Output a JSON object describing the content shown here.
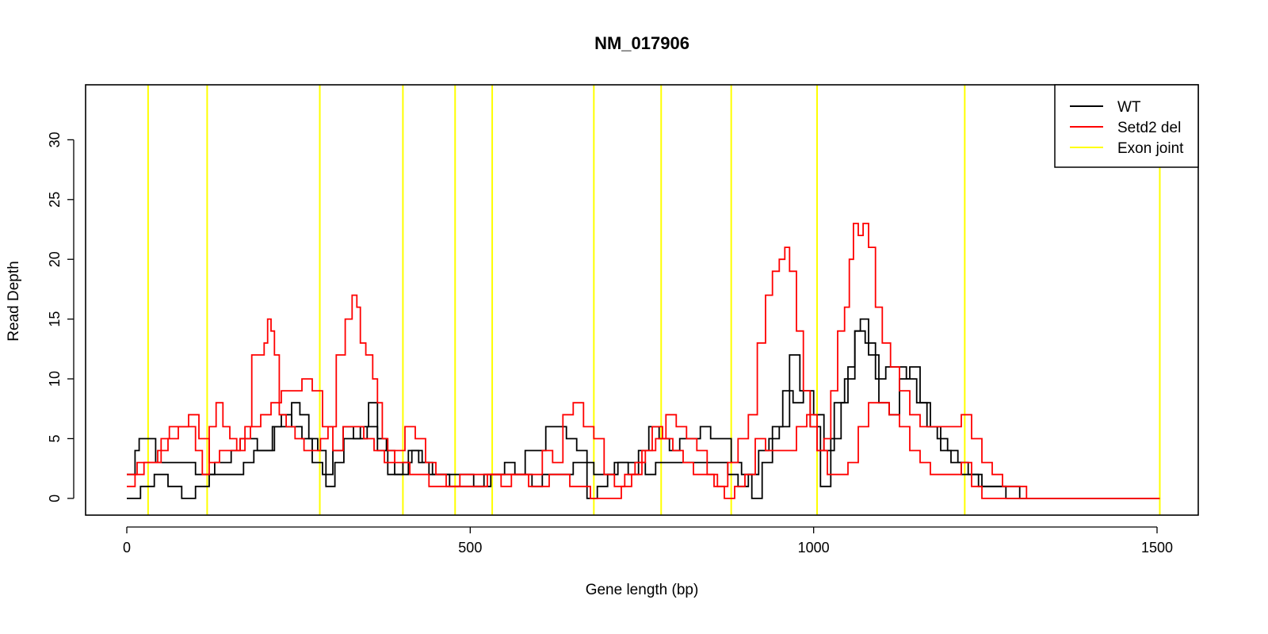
{
  "chart_data": {
    "type": "line",
    "title": "NM_017906",
    "xlabel": "Gene length (bp)",
    "ylabel": "Read Depth",
    "xlim": [
      -60,
      1560
    ],
    "ylim": [
      -1.4,
      34.6
    ],
    "xticks": [
      0,
      500,
      1000,
      1500
    ],
    "yticks": [
      0,
      5,
      10,
      15,
      20,
      25,
      30
    ],
    "grid": false,
    "legend_position": "top-right",
    "exon_joints": [
      31,
      117,
      281,
      402,
      478,
      532,
      680,
      778,
      880,
      1005,
      1220,
      1504
    ],
    "series": [
      {
        "name": "WT",
        "color": "#000000",
        "x": [
          0,
          12,
          18,
          30,
          42,
          55,
          70,
          88,
          100,
          115,
          128,
          140,
          152,
          165,
          178,
          190,
          202,
          215,
          228,
          240,
          252,
          265,
          278,
          290,
          303,
          316,
          328,
          340,
          352,
          365,
          378,
          390,
          402,
          415,
          430,
          445,
          460,
          475,
          490,
          505,
          520,
          535,
          550,
          565,
          580,
          595,
          610,
          625,
          640,
          655,
          670,
          685,
          700,
          715,
          730,
          745,
          760,
          775,
          790,
          805,
          820,
          835,
          850,
          865,
          880,
          895,
          910,
          925,
          940,
          955,
          970,
          985,
          1000,
          1015,
          1030,
          1045,
          1060,
          1075,
          1090,
          1105,
          1120,
          1135,
          1150,
          1165,
          1180,
          1195,
          1210,
          1225,
          1240,
          1255,
          1270,
          1285,
          1300,
          1320,
          1400,
          1504
        ],
        "values": [
          2,
          4,
          5,
          5,
          3,
          3,
          3,
          3,
          2,
          2,
          3,
          3,
          4,
          5,
          5,
          4,
          4,
          6,
          6,
          8,
          7,
          5,
          4,
          1,
          3,
          5,
          5,
          6,
          8,
          5,
          4,
          2,
          3,
          4,
          3,
          2,
          2,
          2,
          2,
          1,
          2,
          2,
          3,
          2,
          4,
          4,
          6,
          6,
          5,
          4,
          0,
          1,
          2,
          3,
          2,
          4,
          6,
          5,
          4,
          5,
          5,
          6,
          5,
          5,
          3,
          2,
          0,
          3,
          6,
          9,
          8,
          9,
          7,
          4,
          8,
          10,
          14,
          13,
          10,
          11,
          11,
          10,
          8,
          6,
          5,
          4,
          3,
          2,
          1,
          1,
          1,
          1,
          0,
          0,
          0,
          0
        ]
      },
      {
        "name": "WT",
        "color": "#000000",
        "x": [
          0,
          20,
          40,
          60,
          80,
          100,
          120,
          140,
          155,
          170,
          185,
          200,
          212,
          225,
          240,
          255,
          270,
          285,
          300,
          315,
          330,
          340,
          350,
          365,
          380,
          395,
          410,
          425,
          440,
          455,
          470,
          485,
          500,
          515,
          530,
          545,
          560,
          575,
          590,
          605,
          620,
          635,
          650,
          665,
          680,
          695,
          710,
          725,
          740,
          755,
          770,
          785,
          800,
          815,
          830,
          845,
          860,
          875,
          890,
          905,
          920,
          935,
          950,
          965,
          980,
          995,
          1010,
          1025,
          1040,
          1050,
          1060,
          1068,
          1080,
          1095,
          1110,
          1125,
          1140,
          1155,
          1170,
          1185,
          1200,
          1215,
          1230,
          1245,
          1260,
          1280,
          1300,
          1400,
          1504
        ],
        "values": [
          0,
          1,
          2,
          1,
          0,
          1,
          2,
          2,
          2,
          3,
          4,
          4,
          6,
          7,
          6,
          5,
          3,
          2,
          4,
          6,
          5,
          5,
          6,
          4,
          2,
          2,
          4,
          3,
          2,
          2,
          1,
          1,
          1,
          1,
          2,
          2,
          2,
          2,
          1,
          2,
          2,
          2,
          3,
          3,
          2,
          2,
          3,
          3,
          3,
          2,
          3,
          3,
          3,
          3,
          3,
          3,
          3,
          2,
          1,
          2,
          4,
          5,
          6,
          12,
          9,
          6,
          1,
          5,
          8,
          11,
          14,
          15,
          12,
          8,
          7,
          10,
          11,
          8,
          6,
          4,
          3,
          2,
          2,
          1,
          1,
          0,
          0,
          0,
          0
        ]
      },
      {
        "name": "Setd2 del",
        "color": "#ff0000",
        "x": [
          0,
          12,
          25,
          38,
          50,
          62,
          75,
          88,
          100,
          110,
          120,
          130,
          140,
          150,
          160,
          172,
          182,
          192,
          200,
          205,
          210,
          215,
          222,
          232,
          245,
          258,
          270,
          282,
          293,
          305,
          318,
          328,
          335,
          340,
          348,
          358,
          365,
          372,
          380,
          390,
          402,
          412,
          425,
          440,
          455,
          470,
          485,
          500,
          515,
          530,
          545,
          560,
          575,
          590,
          605,
          620,
          635,
          650,
          665,
          680,
          695,
          710,
          725,
          740,
          755,
          770,
          785,
          800,
          815,
          830,
          845,
          860,
          875,
          890,
          905,
          918,
          930,
          940,
          950,
          958,
          965,
          975,
          985,
          995,
          1005,
          1015,
          1025,
          1035,
          1045,
          1052,
          1058,
          1065,
          1072,
          1080,
          1090,
          1100,
          1112,
          1125,
          1140,
          1155,
          1170,
          1185,
          1200,
          1215,
          1230,
          1245,
          1260,
          1275,
          1290,
          1310,
          1400,
          1504
        ],
        "values": [
          1,
          2,
          3,
          3,
          5,
          6,
          6,
          6,
          4,
          2,
          6,
          8,
          6,
          5,
          4,
          6,
          12,
          12,
          13,
          15,
          14,
          12,
          7,
          6,
          5,
          4,
          4,
          5,
          6,
          12,
          15,
          17,
          16,
          13,
          12,
          10,
          8,
          5,
          4,
          3,
          3,
          2,
          2,
          1,
          1,
          1,
          2,
          2,
          2,
          2,
          1,
          2,
          2,
          2,
          4,
          3,
          7,
          8,
          6,
          5,
          2,
          1,
          2,
          3,
          4,
          5,
          7,
          6,
          5,
          4,
          2,
          1,
          3,
          5,
          7,
          13,
          17,
          19,
          20,
          21,
          19,
          14,
          9,
          6,
          4,
          5,
          9,
          14,
          16,
          20,
          23,
          22,
          23,
          21,
          16,
          13,
          11,
          9,
          7,
          6,
          6,
          6,
          6,
          7,
          5,
          3,
          2,
          1,
          1,
          0,
          0,
          0
        ]
      },
      {
        "name": "Setd2 del",
        "color": "#ff0000",
        "x": [
          0,
          15,
          30,
          45,
          60,
          75,
          90,
          105,
          120,
          135,
          150,
          165,
          180,
          195,
          210,
          225,
          240,
          255,
          270,
          285,
          300,
          315,
          330,
          345,
          360,
          375,
          390,
          405,
          420,
          435,
          450,
          465,
          480,
          495,
          510,
          525,
          540,
          555,
          570,
          585,
          600,
          615,
          630,
          645,
          660,
          675,
          690,
          705,
          720,
          735,
          750,
          765,
          780,
          795,
          810,
          825,
          840,
          855,
          870,
          885,
          900,
          915,
          930,
          945,
          960,
          975,
          990,
          1005,
          1020,
          1035,
          1050,
          1065,
          1080,
          1095,
          1110,
          1125,
          1140,
          1155,
          1170,
          1185,
          1200,
          1215,
          1230,
          1245,
          1260,
          1280,
          1300,
          1400,
          1504
        ],
        "values": [
          2,
          3,
          3,
          4,
          5,
          6,
          7,
          5,
          3,
          4,
          4,
          5,
          6,
          7,
          8,
          9,
          9,
          10,
          9,
          6,
          4,
          6,
          6,
          5,
          4,
          3,
          4,
          6,
          5,
          3,
          2,
          1,
          1,
          1,
          1,
          2,
          2,
          2,
          2,
          1,
          1,
          2,
          2,
          1,
          1,
          0,
          0,
          0,
          1,
          2,
          4,
          6,
          5,
          4,
          3,
          2,
          2,
          1,
          0,
          1,
          2,
          5,
          4,
          4,
          4,
          6,
          7,
          4,
          2,
          2,
          3,
          6,
          8,
          8,
          7,
          6,
          4,
          3,
          2,
          2,
          2,
          3,
          1,
          0,
          0,
          0,
          0,
          0,
          0
        ]
      }
    ]
  },
  "legend": {
    "items": [
      {
        "label": "WT",
        "color": "#000000"
      },
      {
        "label": "Setd2 del",
        "color": "#ff0000"
      },
      {
        "label": "Exon joint",
        "color": "#ffff00"
      }
    ]
  }
}
